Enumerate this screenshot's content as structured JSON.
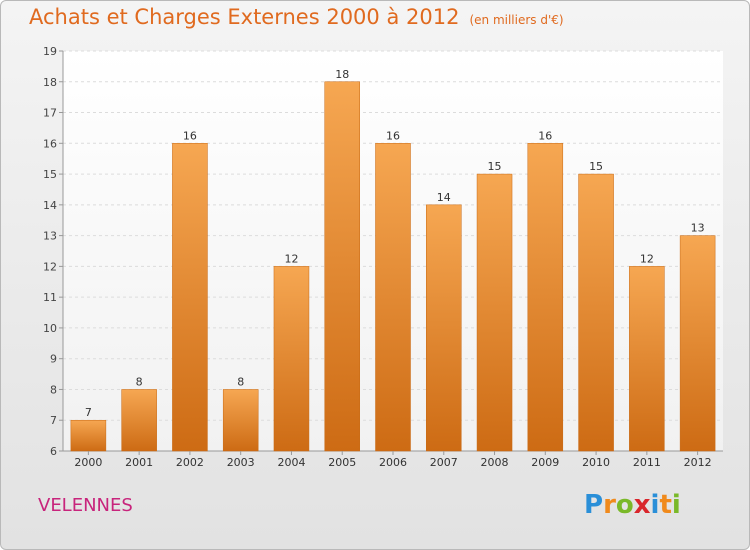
{
  "title": "Achats et Charges Externes 2000 à 2012",
  "unit": "(en milliers d'€)",
  "town": "VELENNES",
  "logo": {
    "letters": [
      "P",
      "r",
      "o",
      "x",
      "i",
      "t",
      "i"
    ],
    "colors": [
      "#2a8fd8",
      "#f08a1c",
      "#7ab929",
      "#d9262c",
      "#2a8fd8",
      "#f08a1c",
      "#7ab929"
    ]
  },
  "colors": {
    "bar_top": "#f6a752",
    "bar_bottom": "#cd6b14",
    "title": "#e06a1f",
    "town": "#c8247c"
  },
  "chart_data": {
    "type": "bar",
    "categories": [
      "2000",
      "2001",
      "2002",
      "2003",
      "2004",
      "2005",
      "2006",
      "2007",
      "2008",
      "2009",
      "2010",
      "2011",
      "2012"
    ],
    "values": [
      7,
      8,
      16,
      8,
      12,
      18,
      16,
      14,
      15,
      16,
      15,
      12,
      13
    ],
    "ylim": [
      6,
      19
    ],
    "yticks": [
      6,
      7,
      8,
      9,
      10,
      11,
      12,
      13,
      14,
      15,
      16,
      17,
      18,
      19
    ],
    "grid": true,
    "data_labels": true
  }
}
